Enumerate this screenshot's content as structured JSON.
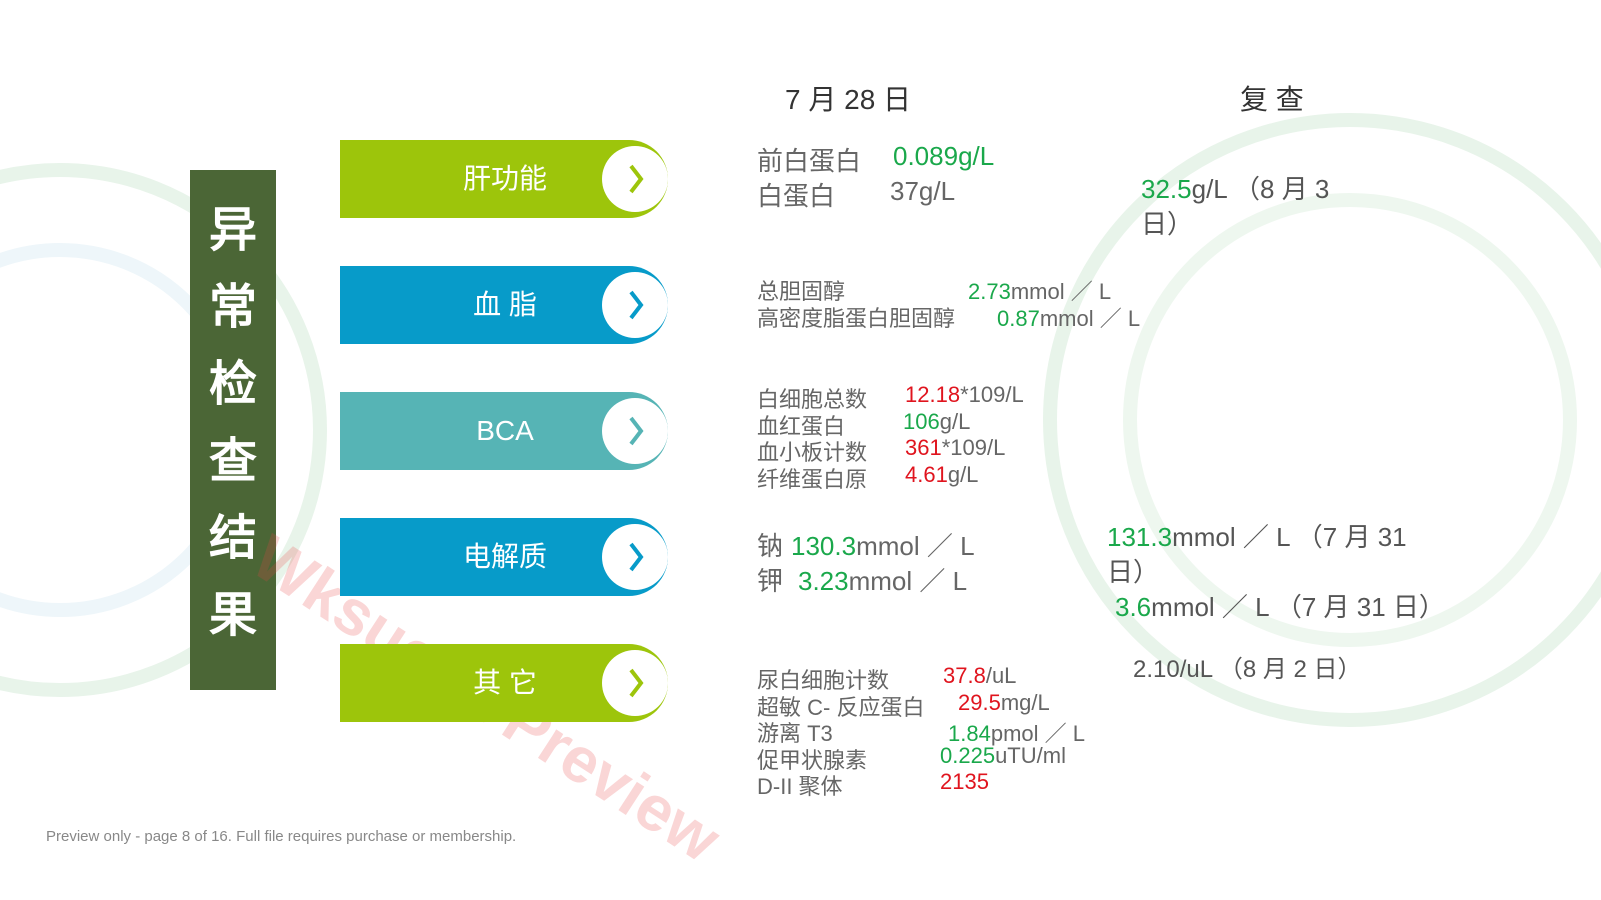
{
  "side_title": "异常检查结果",
  "headers": {
    "date": "7 月 28 日",
    "recheck": "复 查"
  },
  "categories": [
    {
      "label": "肝功能",
      "color": "#9dc50b"
    },
    {
      "label": "血 脂",
      "color": "#079bc9"
    },
    {
      "label": "BCA",
      "color": "#56b4b5"
    },
    {
      "label": "电解质",
      "color": "#079bc9"
    },
    {
      "label": "其 它",
      "color": "#9dc50b"
    }
  ],
  "results": [
    [
      {
        "label": "前白蛋白",
        "value": "0.089g/L",
        "color": "#1aa84b"
      },
      {
        "label": "白蛋白",
        "value": "37g/L",
        "color": "#666666"
      }
    ],
    [
      {
        "label": "总胆固醇",
        "value": "2.73",
        "unit": "mmol ／ L",
        "color": "#1aa84b"
      },
      {
        "label": "高密度脂蛋白胆固醇",
        "value": "0.87",
        "unit": "mmol ／ L",
        "color": "#1aa84b"
      }
    ],
    [
      {
        "label": "白细胞总数",
        "value": "12.18",
        "unit": "*109/L",
        "color": "#e0141e"
      },
      {
        "label": "血红蛋白",
        "value": "106",
        "unit": "g/L",
        "color": "#1aa84b"
      },
      {
        "label": "血小板计数",
        "value": "361",
        "unit": "*109/L",
        "color": "#e0141e"
      },
      {
        "label": "纤维蛋白原",
        "value": "4.61",
        "unit": "g/L",
        "color": "#e0141e"
      }
    ],
    [
      {
        "label": "钠",
        "value": "130.3",
        "unit": "mmol ／ L",
        "color": "#1aa84b"
      },
      {
        "label": "钾",
        "value": "3.23",
        "unit": "mmol ／ L",
        "color": "#1aa84b"
      }
    ],
    [
      {
        "label": "尿白细胞计数",
        "value": "37.8",
        "unit": "/uL",
        "color": "#e0141e"
      },
      {
        "label": "超敏 C- 反应蛋白",
        "value": "29.5",
        "unit": "mg/L",
        "color": "#e0141e"
      },
      {
        "label": "游离 T3",
        "value": "1.84",
        "unit": "pmol ／ L",
        "color": "#1aa84b"
      },
      {
        "label": "促甲状腺素",
        "value": "0.225",
        "unit": "uTU/ml",
        "color": "#1aa84b"
      },
      {
        "label": "D-II 聚体",
        "value": "2135",
        "color": "#e0141e"
      }
    ]
  ],
  "rechecks": [
    {
      "value": "32.5",
      "unit": "g/L （8 月 3 日）",
      "color": "#1aa84b"
    },
    {
      "value": "131.3",
      "unit": "mmol ／ L （7 月 31 日）",
      "color": "#1aa84b"
    },
    {
      "value": "3.6",
      "unit": "mmol ／ L （7 月 31 日）",
      "color": "#1aa84b"
    },
    {
      "value": "2.10",
      "unit": "/uL （8 月 2 日）",
      "color": "#555555"
    }
  ],
  "watermark": "Wksucha Preview",
  "footer": "Preview only - page 8 of 16. Full file requires purchase or membership."
}
